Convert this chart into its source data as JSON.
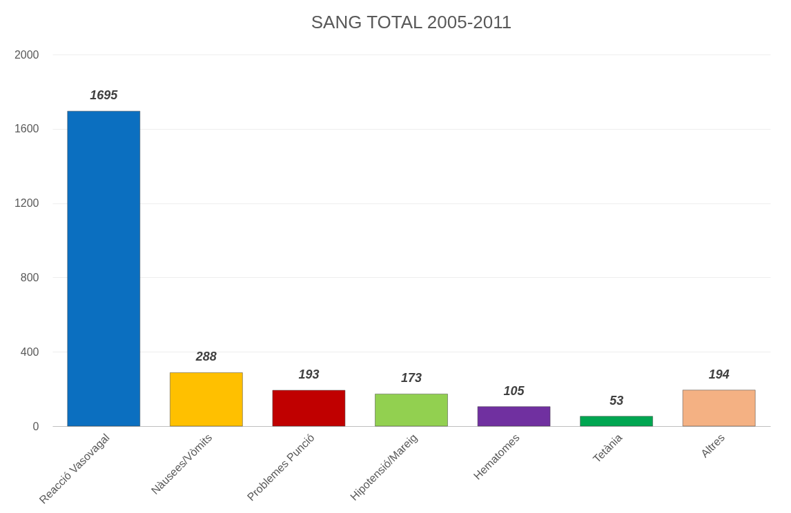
{
  "chart_data": {
    "type": "bar",
    "title": "SANG TOTAL 2005-2011",
    "categories": [
      "Reacció Vasovagal",
      "Nàusees/Vòmits",
      "Problemes Punció",
      "Hipotensió/Mareig",
      "Hematomes",
      "Tetània",
      "Altres"
    ],
    "values": [
      1695,
      288,
      193,
      173,
      105,
      53,
      194
    ],
    "colors": [
      "#0b6fc0",
      "#ffc000",
      "#c00000",
      "#92d050",
      "#7030a0",
      "#00a651",
      "#f4b183"
    ],
    "ylim": [
      0,
      2000
    ],
    "yticks": [
      0,
      400,
      800,
      1200,
      1600,
      2000
    ],
    "grid": "y",
    "data_labels": true
  }
}
